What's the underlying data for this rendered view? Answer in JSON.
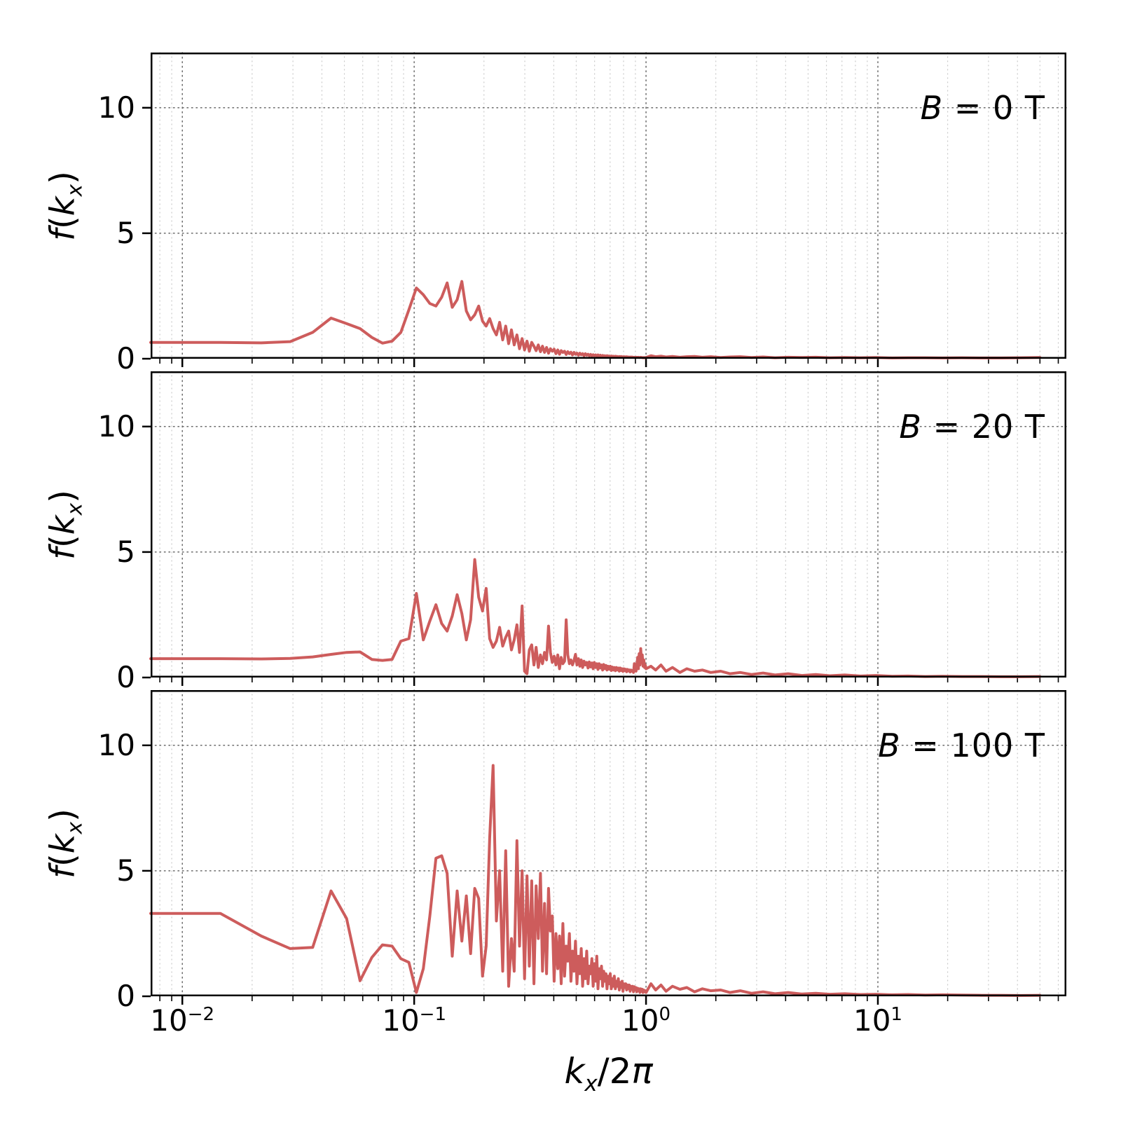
{
  "figure": {
    "xlabel": "k_x/2π",
    "ylabel": "f(k_x)",
    "line_color": "#cd5c5c",
    "background": "#ffffff"
  },
  "chart_data": [
    {
      "type": "line",
      "label": "B = 0 T",
      "xscale": "log",
      "xlim": [
        0.0073,
        65
      ],
      "ylim": [
        0,
        12.2
      ],
      "x_tick_exponents": [
        -2,
        -1,
        0,
        1
      ],
      "y_ticks": [
        0,
        5,
        10
      ],
      "grid": true,
      "x_linear": {
        "start": 0.0073,
        "step": 0.0073,
        "count": 137
      },
      "y_linear": [
        0.65,
        0.65,
        0.63,
        0.68,
        1.05,
        1.62,
        1.4,
        1.2,
        0.85,
        0.62,
        0.7,
        1.05,
        1.95,
        2.82,
        2.55,
        2.2,
        2.1,
        2.45,
        3.02,
        2.05,
        2.35,
        3.08,
        1.9,
        1.55,
        1.75,
        2.1,
        1.5,
        1.3,
        1.6,
        1.2,
        0.95,
        1.45,
        0.75,
        1.3,
        0.6,
        1.15,
        0.55,
        0.95,
        0.4,
        0.8,
        0.35,
        0.7,
        0.3,
        0.65,
        0.5,
        0.32,
        0.55,
        0.28,
        0.5,
        0.25,
        0.45,
        0.22,
        0.4,
        0.3,
        0.38,
        0.2,
        0.35,
        0.18,
        0.32,
        0.25,
        0.3,
        0.17,
        0.28,
        0.2,
        0.26,
        0.15,
        0.25,
        0.18,
        0.22,
        0.14,
        0.22,
        0.16,
        0.2,
        0.12,
        0.2,
        0.14,
        0.18,
        0.12,
        0.17,
        0.11,
        0.16,
        0.12,
        0.15,
        0.1,
        0.15,
        0.11,
        0.14,
        0.09,
        0.13,
        0.11,
        0.12,
        0.09,
        0.12,
        0.1,
        0.11,
        0.08,
        0.11,
        0.09,
        0.1,
        0.08,
        0.1,
        0.09,
        0.09,
        0.07,
        0.09,
        0.08,
        0.09,
        0.07,
        0.08,
        0.07,
        0.08,
        0.06,
        0.08,
        0.07,
        0.07,
        0.06,
        0.07,
        0.06,
        0.07,
        0.06,
        0.06,
        0.05,
        0.06,
        0.05,
        0.06,
        0.05,
        0.06,
        0.05,
        0.05,
        0.06,
        0.05,
        0.05,
        0.04,
        0.05,
        0.04,
        0.05,
        0.05
      ],
      "x_tail": [
        1.05,
        1.1,
        1.16,
        1.22,
        1.3,
        1.4,
        1.5,
        1.62,
        1.75,
        1.9,
        2.1,
        2.3,
        2.55,
        2.85,
        3.2,
        3.6,
        4.1,
        4.7,
        5.4,
        6.2,
        7.2,
        8.4,
        9.8,
        11.5,
        13.5,
        16,
        19,
        23,
        28,
        34,
        41,
        50
      ],
      "y_tail": [
        0.12,
        0.08,
        0.1,
        0.07,
        0.09,
        0.06,
        0.08,
        0.09,
        0.06,
        0.08,
        0.05,
        0.07,
        0.08,
        0.05,
        0.07,
        0.04,
        0.06,
        0.05,
        0.06,
        0.04,
        0.05,
        0.04,
        0.05,
        0.03,
        0.04,
        0.04,
        0.03,
        0.04,
        0.03,
        0.03,
        0.04,
        0.05
      ]
    },
    {
      "type": "line",
      "label": "B = 20 T",
      "xscale": "log",
      "xlim": [
        0.0073,
        65
      ],
      "ylim": [
        0,
        12.2
      ],
      "x_tick_exponents": [
        -2,
        -1,
        0,
        1
      ],
      "y_ticks": [
        0,
        5,
        10
      ],
      "grid": true,
      "x_linear": {
        "start": 0.0073,
        "step": 0.0073,
        "count": 137
      },
      "y_linear": [
        0.75,
        0.75,
        0.74,
        0.76,
        0.82,
        0.92,
        1.0,
        1.02,
        0.72,
        0.68,
        0.72,
        1.45,
        1.55,
        3.35,
        1.5,
        2.25,
        2.9,
        2.15,
        1.85,
        2.45,
        3.3,
        2.55,
        1.5,
        2.3,
        4.7,
        3.2,
        2.65,
        3.55,
        1.55,
        1.2,
        1.45,
        2.0,
        1.25,
        1.6,
        1.85,
        1.1,
        1.5,
        2.1,
        1.0,
        2.85,
        0.25,
        0.15,
        1.1,
        1.3,
        0.5,
        1.2,
        0.4,
        0.9,
        0.55,
        1.0,
        0.7,
        2.05,
        1.0,
        0.6,
        0.85,
        0.5,
        0.9,
        0.35,
        0.8,
        0.55,
        0.65,
        2.3,
        0.9,
        0.55,
        0.7,
        0.5,
        0.68,
        0.92,
        0.5,
        0.75,
        0.45,
        0.7,
        0.4,
        0.65,
        0.5,
        0.6,
        0.38,
        0.62,
        0.42,
        0.58,
        0.35,
        0.6,
        0.4,
        0.55,
        0.32,
        0.55,
        0.38,
        0.5,
        0.3,
        0.52,
        0.35,
        0.48,
        0.3,
        0.45,
        0.33,
        0.45,
        0.28,
        0.42,
        0.3,
        0.4,
        0.27,
        0.4,
        0.3,
        0.38,
        0.25,
        0.38,
        0.28,
        0.35,
        0.24,
        0.35,
        0.27,
        0.33,
        0.23,
        0.32,
        0.26,
        0.3,
        0.22,
        0.3,
        0.25,
        0.28,
        0.2,
        0.55,
        0.3,
        0.25,
        0.45,
        0.8,
        0.35,
        0.95,
        0.5,
        1.15,
        0.6,
        0.9,
        0.45,
        0.7,
        0.4,
        0.5,
        0.35
      ],
      "x_tail": [
        1.05,
        1.1,
        1.16,
        1.22,
        1.3,
        1.4,
        1.5,
        1.62,
        1.75,
        1.9,
        2.1,
        2.3,
        2.55,
        2.85,
        3.2,
        3.6,
        4.1,
        4.7,
        5.4,
        6.2,
        7.2,
        8.4,
        9.8,
        11.5,
        13.5,
        16,
        19,
        23,
        28,
        34,
        41,
        50
      ],
      "y_tail": [
        0.45,
        0.3,
        0.5,
        0.25,
        0.4,
        0.2,
        0.35,
        0.25,
        0.3,
        0.2,
        0.25,
        0.15,
        0.2,
        0.12,
        0.18,
        0.1,
        0.15,
        0.08,
        0.12,
        0.07,
        0.1,
        0.06,
        0.08,
        0.05,
        0.06,
        0.04,
        0.05,
        0.04,
        0.04,
        0.03,
        0.03,
        0.04
      ]
    },
    {
      "type": "line",
      "label": "B = 100 T",
      "xscale": "log",
      "xlim": [
        0.0073,
        65
      ],
      "ylim": [
        0,
        12.2
      ],
      "x_tick_exponents": [
        -2,
        -1,
        0,
        1
      ],
      "y_ticks": [
        0,
        5,
        10
      ],
      "grid": true,
      "x_linear": {
        "start": 0.0073,
        "step": 0.0073,
        "count": 137
      },
      "y_linear": [
        3.3,
        3.3,
        2.4,
        1.9,
        1.95,
        4.2,
        3.1,
        0.62,
        1.55,
        2.05,
        2.0,
        1.5,
        1.35,
        0.15,
        1.1,
        3.2,
        5.5,
        5.6,
        4.9,
        1.6,
        4.2,
        2.2,
        4.0,
        1.7,
        4.3,
        3.9,
        0.8,
        2.0,
        6.3,
        9.2,
        3.0,
        5.0,
        1.0,
        5.8,
        0.4,
        2.3,
        1.0,
        6.2,
        2.0,
        5.0,
        0.7,
        4.8,
        1.2,
        4.6,
        0.5,
        4.4,
        2.3,
        4.9,
        1.0,
        3.7,
        0.9,
        4.3,
        2.6,
        3.2,
        0.6,
        2.5,
        1.1,
        2.4,
        0.5,
        2.9,
        0.8,
        2.0,
        1.4,
        2.5,
        0.6,
        1.8,
        1.0,
        2.2,
        0.5,
        1.6,
        0.9,
        1.9,
        0.4,
        1.5,
        0.7,
        1.8,
        0.5,
        1.2,
        0.9,
        1.5,
        0.4,
        1.3,
        0.6,
        1.6,
        0.3,
        1.1,
        0.7,
        1.2,
        0.4,
        1.0,
        0.6,
        0.9,
        0.3,
        0.8,
        0.5,
        0.9,
        0.3,
        0.7,
        0.4,
        0.8,
        0.3,
        0.6,
        0.4,
        0.7,
        0.25,
        0.55,
        0.35,
        0.6,
        0.2,
        0.5,
        0.35,
        0.5,
        0.25,
        0.45,
        0.3,
        0.45,
        0.2,
        0.4,
        0.28,
        0.4,
        0.18,
        0.38,
        0.25,
        0.35,
        0.18,
        0.32,
        0.22,
        0.3,
        0.15,
        0.3,
        0.2,
        0.28,
        0.15,
        0.25,
        0.18,
        0.22,
        0.15
      ],
      "x_tail": [
        1.05,
        1.1,
        1.16,
        1.22,
        1.3,
        1.4,
        1.5,
        1.62,
        1.75,
        1.9,
        2.1,
        2.3,
        2.55,
        2.85,
        3.2,
        3.6,
        4.1,
        4.7,
        5.4,
        6.2,
        7.2,
        8.4,
        9.8,
        11.5,
        13.5,
        16,
        19,
        23,
        28,
        34,
        41,
        50
      ],
      "y_tail": [
        0.5,
        0.25,
        0.45,
        0.2,
        0.4,
        0.28,
        0.35,
        0.18,
        0.3,
        0.22,
        0.25,
        0.15,
        0.22,
        0.12,
        0.18,
        0.1,
        0.15,
        0.09,
        0.12,
        0.08,
        0.1,
        0.07,
        0.08,
        0.06,
        0.07,
        0.05,
        0.06,
        0.05,
        0.04,
        0.04,
        0.03,
        0.04
      ]
    }
  ]
}
